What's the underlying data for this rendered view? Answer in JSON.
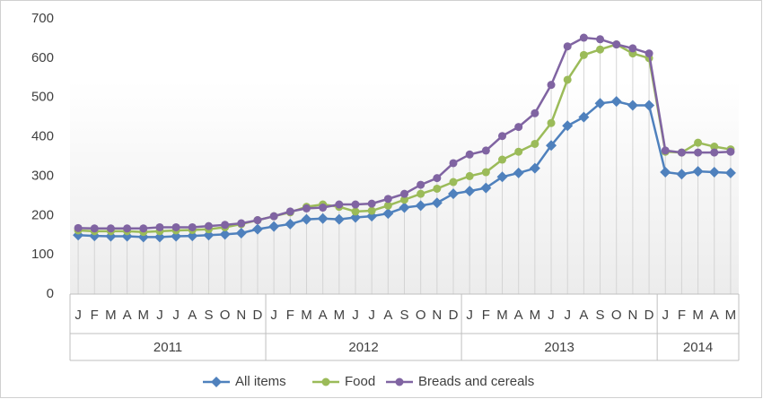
{
  "chart_data": {
    "type": "line",
    "categories": [
      "J",
      "F",
      "M",
      "A",
      "M",
      "J",
      "J",
      "A",
      "S",
      "O",
      "N",
      "D",
      "J",
      "F",
      "M",
      "A",
      "M",
      "J",
      "J",
      "A",
      "S",
      "O",
      "N",
      "D",
      "J",
      "F",
      "M",
      "A",
      "M",
      "J",
      "J",
      "A",
      "S",
      "O",
      "N",
      "D",
      "J",
      "F",
      "M",
      "A",
      "M"
    ],
    "years": [
      "2011",
      "2012",
      "2013",
      "2014"
    ],
    "series": [
      {
        "name": "All items",
        "color": "#4f81bd",
        "marker": "diamond",
        "values": [
          150,
          148,
          147,
          147,
          145,
          145,
          147,
          148,
          150,
          152,
          155,
          165,
          172,
          178,
          190,
          192,
          190,
          195,
          198,
          205,
          220,
          225,
          232,
          255,
          262,
          270,
          298,
          308,
          320,
          378,
          428,
          450,
          485,
          490,
          480,
          480,
          310,
          305,
          312,
          310,
          308
        ]
      },
      {
        "name": "Food",
        "color": "#9bbb59",
        "marker": "circle",
        "values": [
          162,
          160,
          160,
          160,
          158,
          160,
          162,
          163,
          165,
          170,
          178,
          188,
          198,
          208,
          222,
          228,
          222,
          210,
          212,
          225,
          240,
          255,
          268,
          285,
          300,
          310,
          342,
          362,
          382,
          435,
          545,
          608,
          622,
          635,
          612,
          600,
          362,
          360,
          385,
          375,
          368
        ]
      },
      {
        "name": "Breads and cereals",
        "color": "#8064a2",
        "marker": "circle",
        "values": [
          168,
          167,
          167,
          167,
          167,
          170,
          170,
          170,
          173,
          176,
          180,
          188,
          198,
          210,
          218,
          220,
          228,
          228,
          230,
          242,
          255,
          278,
          295,
          333,
          355,
          365,
          402,
          425,
          460,
          532,
          630,
          652,
          648,
          635,
          625,
          612,
          365,
          360,
          360,
          360,
          362
        ]
      }
    ],
    "ylim": [
      0,
      700
    ],
    "yticks": [
      0,
      100,
      200,
      300,
      400,
      500,
      600,
      700
    ],
    "legend": "bottom"
  }
}
